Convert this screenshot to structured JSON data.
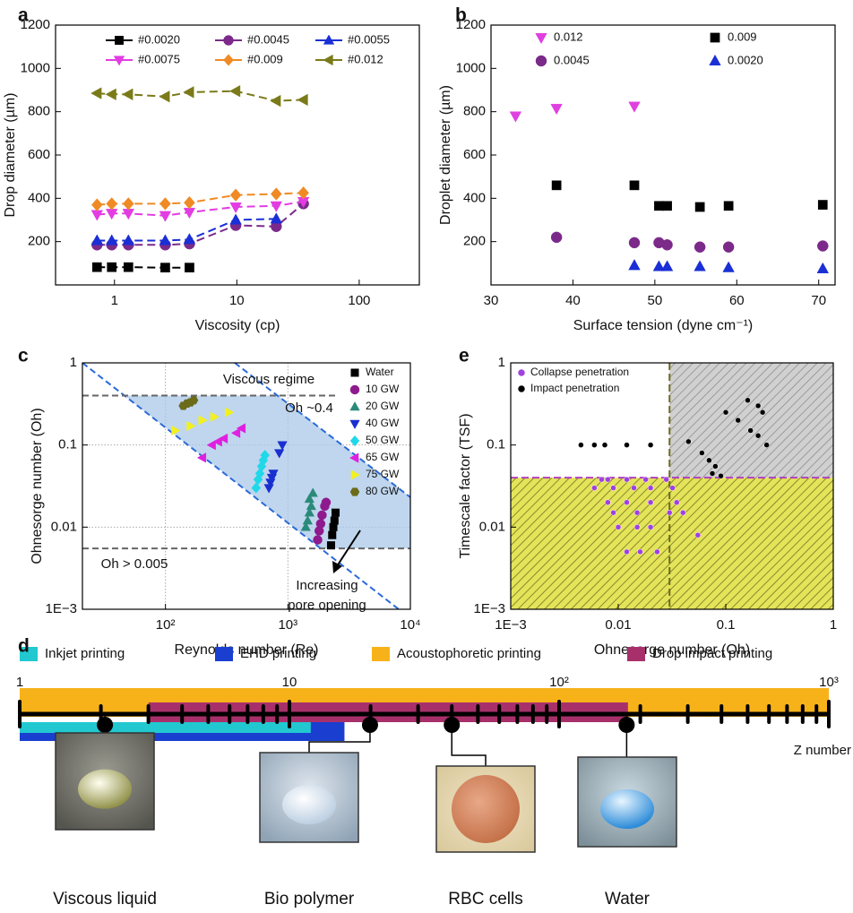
{
  "chart_data": [
    {
      "panel": "a",
      "type": "line",
      "xlabel": "Viscosity (cp)",
      "ylabel": "Drop diameter (µm)",
      "log_x": true,
      "xlim": [
        0.33,
        310
      ],
      "xticks": [
        1,
        10,
        100
      ],
      "ylim": [
        0,
        1200
      ],
      "yticks": [
        200,
        400,
        600,
        800,
        1000,
        1200
      ],
      "x": [
        0.72,
        0.95,
        1.3,
        2.6,
        4.1,
        9.8,
        21,
        35
      ],
      "series": [
        {
          "name": "#0.0020",
          "color": "#000000",
          "marker": "square",
          "values": [
            82,
            82,
            82,
            80,
            80,
            null,
            null,
            null
          ]
        },
        {
          "name": "#0.0045",
          "color": "#7b2a8a",
          "marker": "circle",
          "values": [
            185,
            185,
            185,
            185,
            190,
            275,
            270,
            375
          ]
        },
        {
          "name": "#0.0055",
          "color": "#1a2fd6",
          "marker": "triangle-up",
          "values": [
            205,
            205,
            205,
            205,
            210,
            300,
            305,
            null
          ]
        },
        {
          "name": "#0.0075",
          "color": "#e23ce2",
          "marker": "triangle-down",
          "values": [
            325,
            330,
            330,
            320,
            335,
            360,
            365,
            385
          ]
        },
        {
          "name": "#0.009",
          "color": "#f08a24",
          "marker": "diamond",
          "values": [
            370,
            375,
            375,
            375,
            380,
            415,
            420,
            425
          ]
        },
        {
          "name": "#0.012",
          "color": "#7a7a1a",
          "marker": "triangle-left",
          "values": [
            885,
            880,
            880,
            870,
            890,
            895,
            850,
            855
          ]
        }
      ]
    },
    {
      "panel": "b",
      "type": "scatter",
      "xlabel": "Surface tension (dyne cm⁻¹)",
      "ylabel": "Droplet diameter (µm)",
      "xlim": [
        30,
        72
      ],
      "xticks": [
        30,
        40,
        50,
        60,
        70
      ],
      "ylim": [
        0,
        1200
      ],
      "yticks": [
        200,
        400,
        600,
        800,
        1000,
        1200
      ],
      "series": [
        {
          "name": "0.012",
          "color": "#e040e0",
          "marker": "triangle-down",
          "x": [
            33,
            38,
            47.5
          ],
          "values": [
            780,
            815,
            825
          ]
        },
        {
          "name": "0.009",
          "color": "#000000",
          "marker": "square",
          "x": [
            38,
            47.5,
            50.5,
            51.5,
            55.5,
            59,
            70.5
          ],
          "values": [
            460,
            460,
            365,
            365,
            360,
            365,
            370
          ]
        },
        {
          "name": "0.0045",
          "color": "#7b2a8a",
          "marker": "circle",
          "x": [
            38,
            47.5,
            50.5,
            51.5,
            55.5,
            59,
            70.5
          ],
          "values": [
            220,
            195,
            195,
            185,
            175,
            175,
            180
          ]
        },
        {
          "name": "0.0020",
          "color": "#1a2fd6",
          "marker": "triangle-up",
          "x": [
            47.5,
            50.5,
            51.5,
            55.5,
            59,
            70.5
          ],
          "values": [
            90,
            85,
            85,
            85,
            80,
            75
          ]
        }
      ]
    },
    {
      "panel": "c",
      "type": "scatter",
      "xlabel": "Reynolds number (Re)",
      "ylabel": "Ohnesorge number (Oh)",
      "log_x": true,
      "log_y": true,
      "grid": true,
      "xlim": [
        21,
        10000
      ],
      "xticks": [
        {
          "value": 100,
          "label": "10²"
        },
        {
          "value": 1000,
          "label": "10³"
        },
        {
          "value": 10000,
          "label": "10⁴"
        }
      ],
      "ylim": [
        0.001,
        1
      ],
      "yticks": [
        {
          "value": 0.001,
          "label": "1E−3"
        },
        0.01,
        0.1,
        1
      ],
      "reference_lines": [
        0.4,
        0.0055
      ],
      "annotations": [
        "Viscous regime",
        "Oh ~0.4",
        "Oh > 0.005",
        "Increasing",
        "pore opening"
      ],
      "series": [
        {
          "name": "Water",
          "color": "#000000",
          "marker": "square",
          "x": [
            2250,
            2300,
            2350,
            2400,
            2450
          ],
          "values": [
            0.006,
            0.008,
            0.01,
            0.012,
            0.015
          ]
        },
        {
          "name": "10 GW",
          "color": "#8e1a8e",
          "marker": "circle",
          "x": [
            1750,
            1800,
            1850,
            1900,
            2000,
            2050
          ],
          "values": [
            0.007,
            0.009,
            0.011,
            0.014,
            0.018,
            0.02
          ]
        },
        {
          "name": "20 GW",
          "color": "#2a8a7a",
          "marker": "triangle-up",
          "x": [
            1400,
            1450,
            1500,
            1550,
            1500,
            1600
          ],
          "values": [
            0.01,
            0.012,
            0.015,
            0.018,
            0.022,
            0.026
          ]
        },
        {
          "name": "40 GW",
          "color": "#1a2fd0",
          "marker": "triangle-down",
          "x": [
            700,
            720,
            740,
            760,
            850,
            900
          ],
          "values": [
            0.03,
            0.035,
            0.04,
            0.045,
            0.08,
            0.1
          ]
        },
        {
          "name": "50 GW",
          "color": "#20d8e8",
          "marker": "diamond",
          "x": [
            550,
            570,
            590,
            610,
            630,
            650
          ],
          "values": [
            0.03,
            0.038,
            0.045,
            0.055,
            0.065,
            0.075
          ]
        },
        {
          "name": "65 GW",
          "color": "#e020e0",
          "marker": "triangle-left",
          "x": [
            200,
            240,
            270,
            300,
            380,
            420
          ],
          "values": [
            0.07,
            0.1,
            0.11,
            0.12,
            0.14,
            0.16
          ]
        },
        {
          "name": "75 GW",
          "color": "#f2f020",
          "marker": "triangle-right",
          "x": [
            120,
            160,
            200,
            250,
            330
          ],
          "values": [
            0.15,
            0.17,
            0.2,
            0.22,
            0.25
          ]
        },
        {
          "name": "80 GW",
          "color": "#6b6b1a",
          "marker": "hexagon",
          "x": [
            140,
            150,
            160,
            170
          ],
          "values": [
            0.3,
            0.32,
            0.33,
            0.35
          ]
        }
      ]
    },
    {
      "panel": "e",
      "type": "scatter",
      "xlabel": "Ohnesorge number (Oh)",
      "ylabel": "Timescale factor (TSF)",
      "log_x": true,
      "log_y": true,
      "xlim": [
        0.001,
        1
      ],
      "xticks": [
        {
          "value": 0.001,
          "label": "1E−3"
        },
        0.01,
        0.1,
        1
      ],
      "ylim": [
        0.001,
        1
      ],
      "yticks": [
        {
          "value": 0.001,
          "label": "1E−3"
        },
        0.01,
        0.1,
        1
      ],
      "x_threshold": 0.03,
      "y_threshold": 0.04,
      "series": [
        {
          "name": "Collapse penetration",
          "color": "#a040e0",
          "marker": "circle",
          "x": [
            0.007,
            0.008,
            0.012,
            0.018,
            0.028,
            0.006,
            0.009,
            0.014,
            0.02,
            0.032,
            0.008,
            0.012,
            0.02,
            0.035,
            0.009,
            0.015,
            0.03,
            0.04,
            0.01,
            0.015,
            0.02,
            0.012,
            0.016,
            0.023,
            0.055
          ],
          "values": [
            0.038,
            0.038,
            0.038,
            0.038,
            0.038,
            0.03,
            0.03,
            0.03,
            0.03,
            0.03,
            0.02,
            0.02,
            0.02,
            0.02,
            0.015,
            0.015,
            0.015,
            0.015,
            0.01,
            0.01,
            0.01,
            0.005,
            0.005,
            0.005,
            0.008
          ]
        },
        {
          "name": "Impact penetration",
          "color": "#000000",
          "marker": "circle",
          "x": [
            0.0045,
            0.006,
            0.0075,
            0.012,
            0.02,
            0.045,
            0.06,
            0.07,
            0.08,
            0.075,
            0.09,
            0.1,
            0.13,
            0.16,
            0.2,
            0.22,
            0.17,
            0.2,
            0.24
          ],
          "values": [
            0.1,
            0.1,
            0.1,
            0.1,
            0.1,
            0.11,
            0.08,
            0.065,
            0.055,
            0.045,
            0.042,
            0.25,
            0.2,
            0.35,
            0.3,
            0.25,
            0.15,
            0.13,
            0.1
          ]
        }
      ]
    },
    {
      "panel": "d",
      "type": "range",
      "xlabel": "Z number",
      "log_x": true,
      "xlim": [
        1,
        1000
      ],
      "xticks": [
        1,
        10,
        {
          "value": 100,
          "label": "10²"
        },
        {
          "value": 1000,
          "label": "10³"
        }
      ],
      "minor_xticks": [
        2,
        3,
        4,
        5,
        6,
        7,
        8,
        9,
        20,
        30,
        40,
        50,
        60,
        70,
        80,
        90,
        200,
        300,
        400,
        500,
        600,
        700,
        800,
        900
      ],
      "series": [
        {
          "name": "Inkjet printing",
          "color": "#22c8d0",
          "range": [
            1,
            12
          ]
        },
        {
          "name": "EHD printing",
          "color": "#1a3fd0",
          "range": [
            1,
            16
          ]
        },
        {
          "name": "Acoustophoretic printing",
          "color": "#f7b21a",
          "range": [
            1,
            1000
          ]
        },
        {
          "name": "Drop impact printing",
          "color": "#a8306a",
          "range": [
            3,
            180
          ]
        }
      ],
      "samples": [
        {
          "label": "Viscous liquid",
          "z": 2.07
        },
        {
          "label": "Bio polymer",
          "z": 19.9
        },
        {
          "label": "RBC cells",
          "z": 40
        },
        {
          "label": "Water",
          "z": 178
        }
      ]
    }
  ]
}
